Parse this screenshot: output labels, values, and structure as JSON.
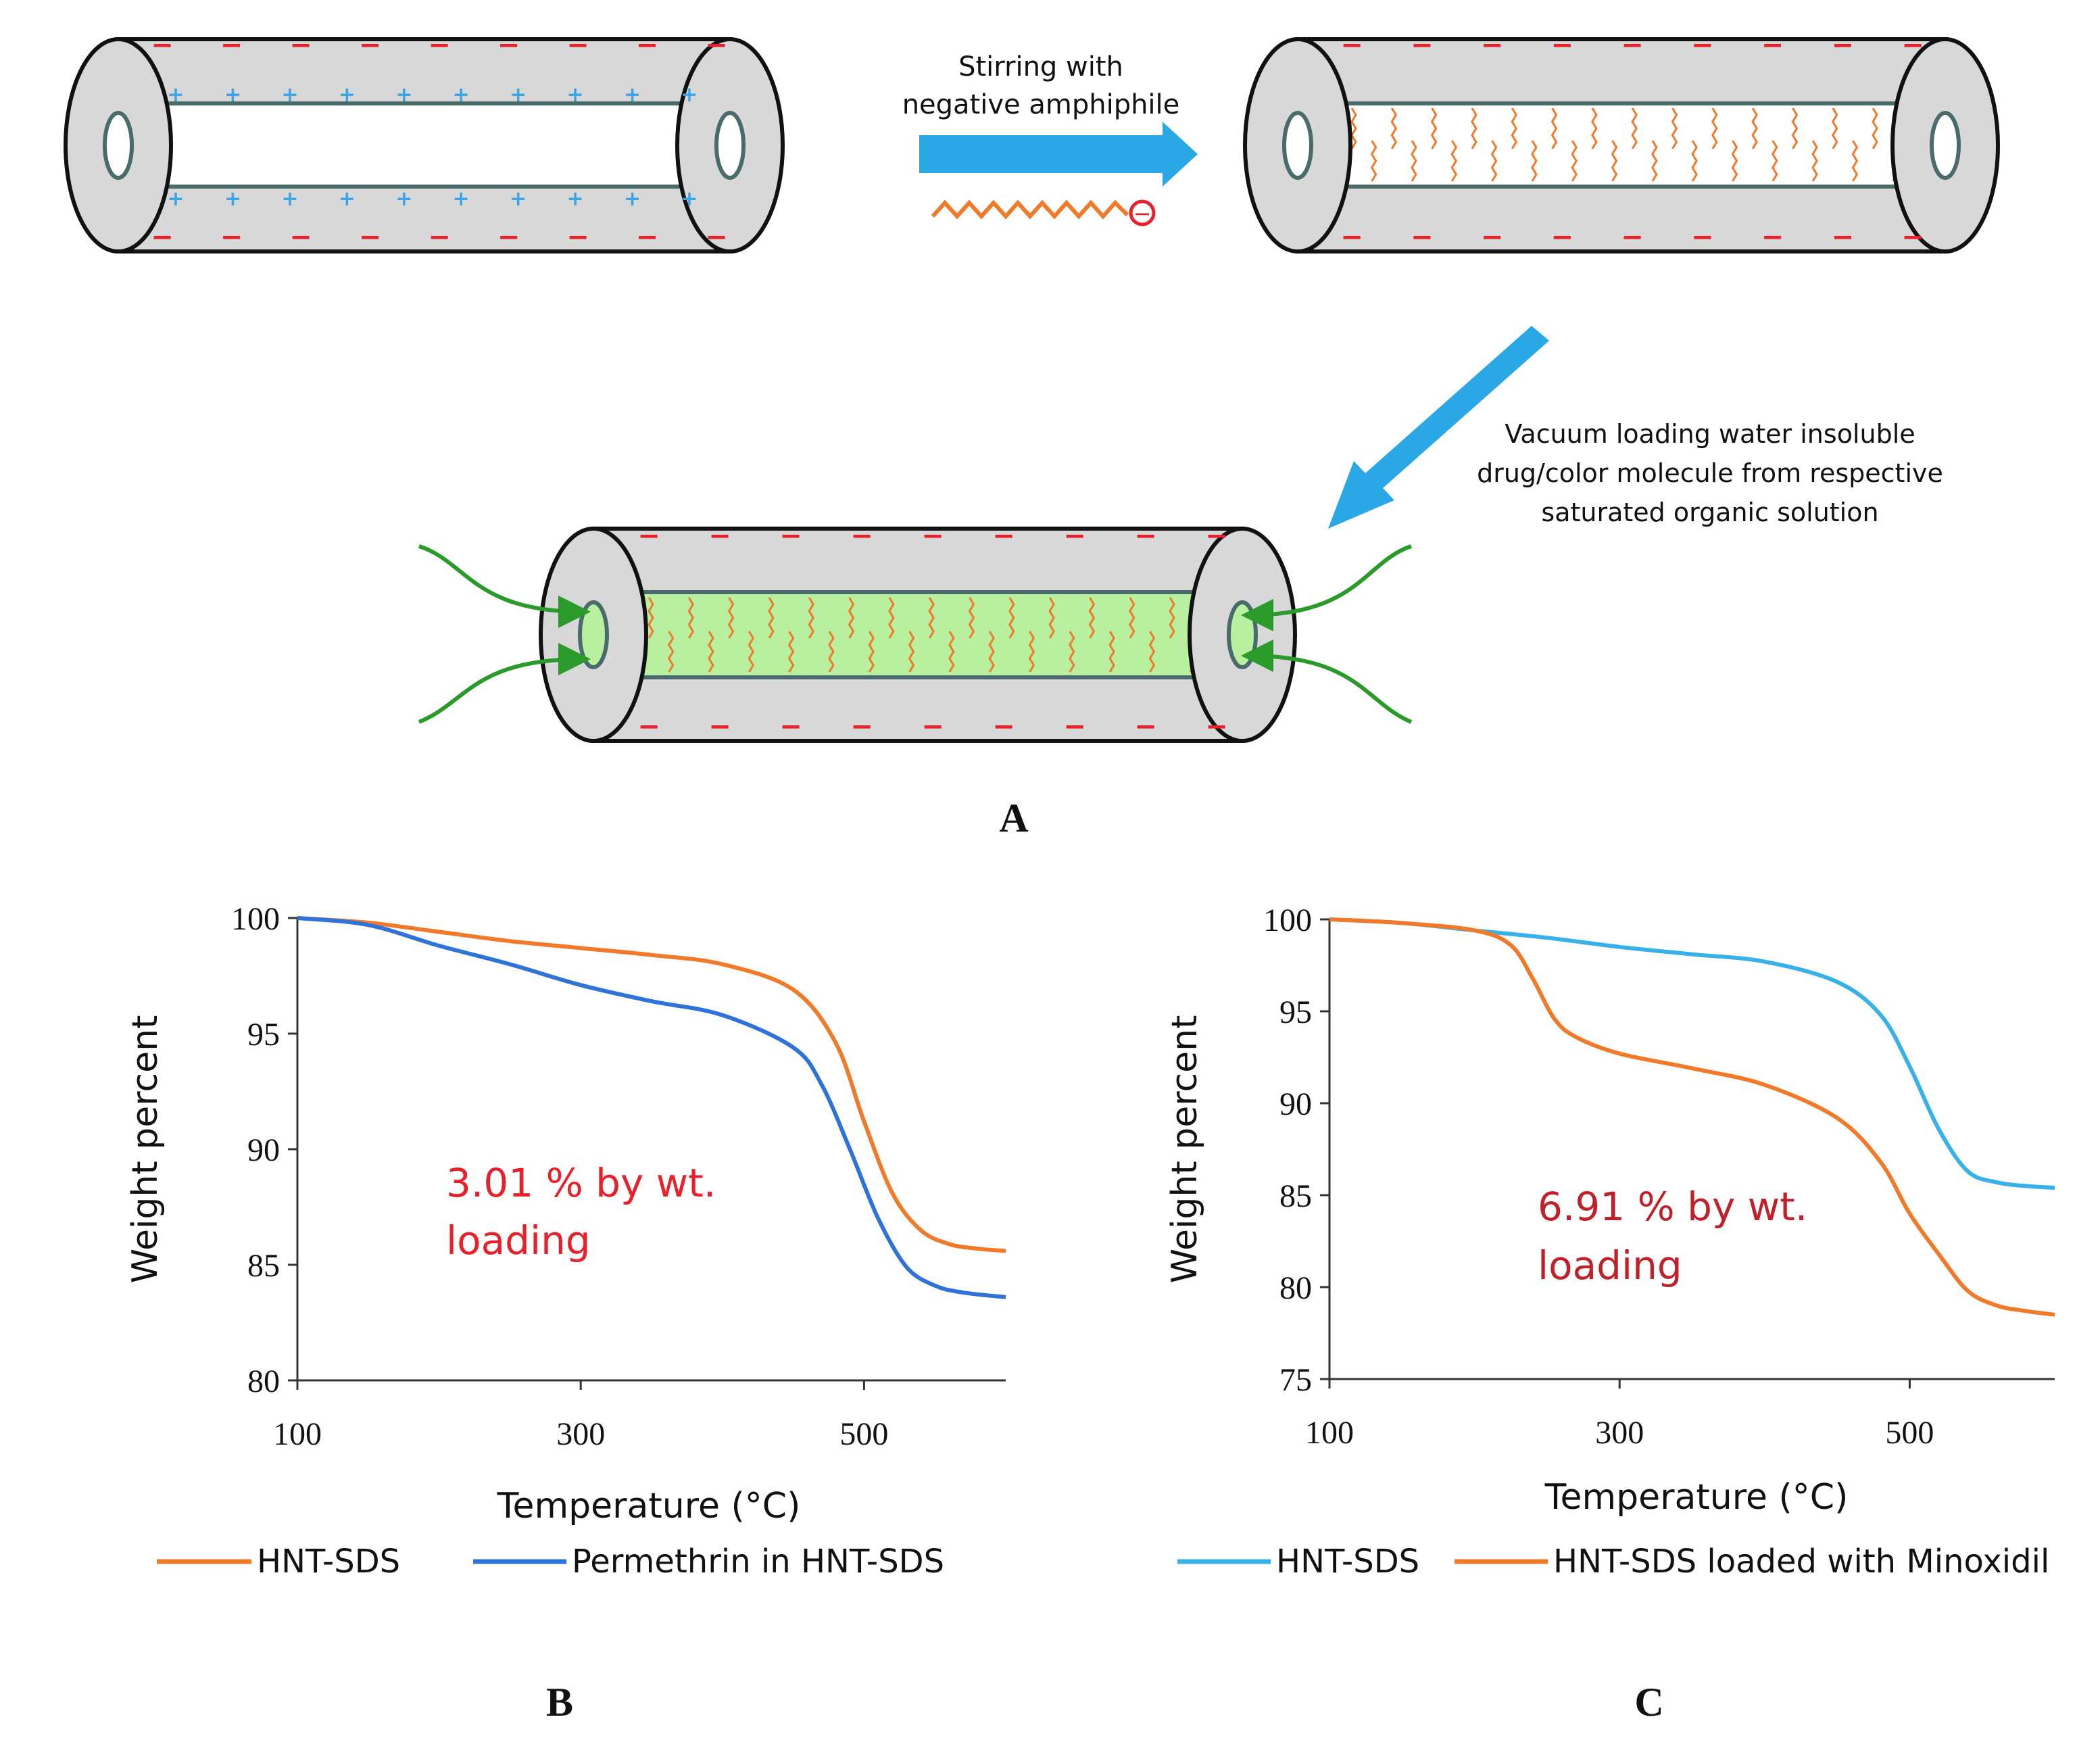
{
  "colors": {
    "tube_fill": "#d8d8d8",
    "tube_stroke": "#111111",
    "inner_line": "#4a6b6b",
    "negative_charge": "#e8202a",
    "positive_charge": "#3ca4e0",
    "arrow": "#29a8e5",
    "amphiphile": "#f07a2a",
    "loaded_drug": "#b8f0a0",
    "flow_arrow": "#2a9a2a",
    "annotation_b": "#e8202a",
    "annotation_c": "#c0202a",
    "series_orange": "#f07a2a",
    "series_blue": "#2f72d8",
    "series_cyan": "#38b0e8"
  },
  "panel_a": {
    "step1_label_line1": "Stirring with",
    "step1_label_line2": "negative amphiphile",
    "amphiphile_charge": "−",
    "step2_label_line1": "Vacuum loading water insoluble",
    "step2_label_line2": "drug/color molecule from respective",
    "step2_label_line3": "saturated organic solution",
    "negative_charge_symbol": "−",
    "positive_charge_symbol": "+",
    "letter": "A"
  },
  "chart_data": [
    {
      "panel": "B",
      "type": "line",
      "xlabel": "Temperature (°C)",
      "ylabel": "Weight percent",
      "xlim": [
        100,
        600
      ],
      "ylim": [
        80,
        100
      ],
      "xticks": [
        100,
        300,
        500
      ],
      "yticks": [
        80,
        85,
        90,
        95,
        100
      ],
      "annotation_line1": "3.01 % by wt.",
      "annotation_line2": "loading",
      "letter": "B",
      "series": [
        {
          "name": "HNT-SDS",
          "color": "#f07a2a",
          "x": [
            100,
            150,
            200,
            250,
            300,
            350,
            400,
            450,
            480,
            500,
            520,
            540,
            560,
            580,
            600
          ],
          "y": [
            100,
            99.8,
            99.4,
            99.0,
            98.7,
            98.4,
            98.0,
            96.9,
            94.6,
            91.2,
            88.1,
            86.5,
            85.9,
            85.7,
            85.6
          ]
        },
        {
          "name": "Permethrin in HNT-SDS",
          "color": "#2f72d8",
          "x": [
            100,
            150,
            200,
            250,
            300,
            350,
            400,
            450,
            470,
            490,
            510,
            530,
            550,
            570,
            600
          ],
          "y": [
            100,
            99.7,
            98.8,
            98.0,
            97.1,
            96.4,
            95.8,
            94.4,
            92.8,
            90.0,
            87.0,
            84.9,
            84.1,
            83.8,
            83.6
          ]
        }
      ]
    },
    {
      "panel": "C",
      "type": "line",
      "xlabel": "Temperature (°C)",
      "ylabel": "Weight percent",
      "xlim": [
        100,
        600
      ],
      "ylim": [
        75,
        100
      ],
      "xticks": [
        100,
        300,
        500
      ],
      "yticks": [
        75,
        80,
        85,
        90,
        95,
        100
      ],
      "annotation_line1": "6.91 % by wt.",
      "annotation_line2": "loading",
      "letter": "C",
      "series": [
        {
          "name": "HNT-SDS",
          "color": "#38b0e8",
          "x": [
            100,
            150,
            200,
            250,
            300,
            350,
            400,
            450,
            480,
            500,
            520,
            540,
            560,
            580,
            600
          ],
          "y": [
            100,
            99.8,
            99.4,
            99.0,
            98.5,
            98.1,
            97.7,
            96.6,
            94.8,
            92.0,
            88.6,
            86.3,
            85.7,
            85.5,
            85.4
          ]
        },
        {
          "name": "HNT-SDS loaded with Minoxidil",
          "color": "#f07a2a",
          "x": [
            100,
            150,
            200,
            225,
            240,
            255,
            270,
            300,
            350,
            400,
            450,
            480,
            500,
            520,
            540,
            560,
            580,
            600
          ],
          "y": [
            100,
            99.8,
            99.4,
            98.6,
            96.8,
            94.6,
            93.6,
            92.7,
            91.9,
            91.0,
            89.2,
            86.8,
            84.0,
            81.8,
            79.8,
            79.0,
            78.7,
            78.5
          ]
        }
      ]
    }
  ]
}
